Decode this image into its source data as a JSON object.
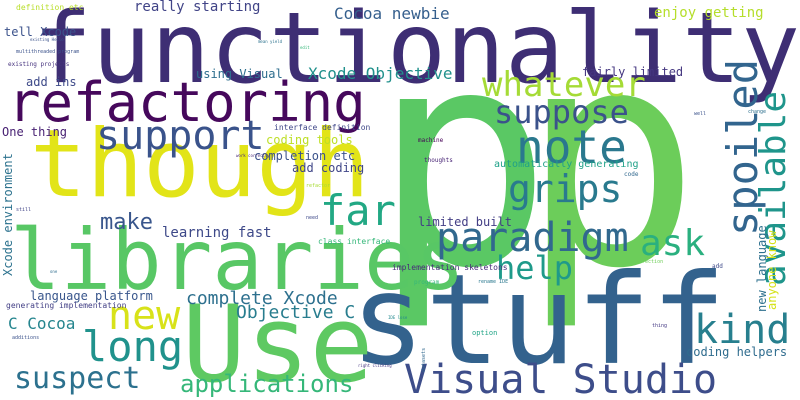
{
  "cloud": {
    "functionality": {
      "text": "functionality",
      "color": "#3e2e74"
    },
    "p": {
      "text": "p",
      "color": "#5ac864"
    },
    "p2": {
      "text": "p",
      "color": "#6ccd5a"
    },
    "refactoring": {
      "text": "refactoring",
      "color": "#46085c"
    },
    "though": {
      "text": "though",
      "color": "#e2e418"
    },
    "libraries": {
      "text": "libraries",
      "color": "#58c765"
    },
    "stuff": {
      "text": "stuff",
      "color": "#33628d"
    },
    "use": {
      "text": "Use",
      "color": "#5ec962"
    },
    "visual_studio": {
      "text": "Visual Studio",
      "color": "#3d4d8a"
    },
    "support": {
      "text": "support",
      "color": "#3a538b"
    },
    "paradigm": {
      "text": "paradigm",
      "color": "#31688e"
    },
    "whatever": {
      "text": "whatever",
      "color": "#a5db36"
    },
    "suppose": {
      "text": "suppose",
      "color": "#3b528b"
    },
    "note": {
      "text": "note",
      "color": "#2a788e"
    },
    "grips": {
      "text": "grips",
      "color": "#297a8e"
    },
    "spoiled": {
      "text": "spoiled",
      "color": "#32658e"
    },
    "available": {
      "text": "available",
      "color": "#1f958b"
    },
    "far": {
      "text": "far",
      "color": "#22a884"
    },
    "ask": {
      "text": "ask",
      "color": "#2ab07f"
    },
    "help": {
      "text": "help",
      "color": "#1f9a8a"
    },
    "kind": {
      "text": "kind",
      "color": "#277f8e"
    },
    "new": {
      "text": "new",
      "color": "#d8e219"
    },
    "long": {
      "text": "long",
      "color": "#20928c"
    },
    "suspect": {
      "text": "suspect",
      "color": "#2c718e"
    },
    "applications": {
      "text": "applications",
      "color": "#35b779"
    },
    "make": {
      "text": "make",
      "color": "#39568c"
    },
    "complete_xcode": {
      "text": "complete Xcode",
      "color": "#2d708e"
    },
    "objective_c": {
      "text": "Objective C",
      "color": "#287d8e"
    },
    "c_cocoa": {
      "text": "C Cocoa",
      "color": "#25858e"
    },
    "learning_fast": {
      "text": "learning fast",
      "color": "#3e4989"
    },
    "xcode_objective": {
      "text": "Xcode Objective",
      "color": "#21918c"
    },
    "cocoa_newbie": {
      "text": "Cocoa newbie",
      "color": "#355f8d"
    },
    "really_starting": {
      "text": "really starting",
      "color": "#414487"
    },
    "enjoy_getting": {
      "text": "enjoy getting",
      "color": "#b5de2b"
    },
    "tell_xcode": {
      "text": "tell Xcode",
      "color": "#3b528b"
    },
    "add_ins": {
      "text": "add ins",
      "color": "#3e4a89"
    },
    "using_visual": {
      "text": "using Visual",
      "color": "#2e6e8e"
    },
    "fairly_limited": {
      "text": "fairly limited",
      "color": "#453781"
    },
    "one_thing": {
      "text": "One thing",
      "color": "#482173"
    },
    "coding_tools": {
      "text": "coding tools",
      "color": "#bddf26"
    },
    "completion_etc": {
      "text": "completion etc",
      "color": "#3b528b"
    },
    "add_coding": {
      "text": "add coding",
      "color": "#404688"
    },
    "automatically_generating": {
      "text": "automatically generating",
      "color": "#1fa188"
    },
    "limited_built": {
      "text": "limited built",
      "color": "#433e85"
    },
    "new_language": {
      "text": "new language",
      "color": "#2d708e"
    },
    "anyone_know": {
      "text": "anyone know",
      "color": "#d5e21a"
    },
    "xcode_environment": {
      "text": "Xcode environment",
      "color": "#2c728e"
    },
    "language_platform": {
      "text": "language platform",
      "color": "#39568c"
    },
    "coding_helpers": {
      "text": "coding helpers",
      "color": "#2f6c8e"
    },
    "generating_implementation": {
      "text": "generating implementation",
      "color": "#423f85"
    },
    "implementation_skeletons": {
      "text": "implementation skeletons",
      "color": "#472c7a"
    },
    "definition_etc": {
      "text": "definition etc",
      "color": "#b8de29"
    },
    "interface_definition": {
      "text": "interface definition",
      "color": "#3f4788"
    },
    "multithreaded_program": {
      "text": "multithreaded program",
      "color": "#3b528b"
    },
    "existing_projects": {
      "text": "existing projects",
      "color": "#46337e"
    },
    "class_interface": {
      "text": "class interface",
      "color": "#35b779"
    },
    "machine": {
      "text": "machine",
      "color": "#440154"
    },
    "thoughts": {
      "text": "thoughts",
      "color": "#482475"
    },
    "code": {
      "text": "code",
      "color": "#31688e"
    },
    "change": {
      "text": "change",
      "color": "#2d708e"
    },
    "well": {
      "text": "well",
      "color": "#3b528b"
    },
    "refactor": {
      "text": "refactor",
      "color": "#a8db34"
    },
    "work_correctly": {
      "text": "work correctly",
      "color": "#482878"
    },
    "still": {
      "text": "still",
      "color": "#414487"
    },
    "need": {
      "text": "need",
      "color": "#3e4989"
    },
    "program": {
      "text": "program",
      "color": "#35b779"
    },
    "rename_ide": {
      "text": "rename IDE",
      "color": "#2a788e"
    },
    "direction": {
      "text": "direction",
      "color": "#6ece58"
    },
    "add": {
      "text": "add",
      "color": "#3e4a89"
    },
    "option": {
      "text": "option",
      "color": "#20a486"
    },
    "thing": {
      "text": "thing",
      "color": "#443983"
    },
    "datasets": {
      "text": "datasets",
      "color": "#31688e"
    },
    "right_clicking": {
      "text": "right clicking",
      "color": "#453581"
    },
    "additions": {
      "text": "additions",
      "color": "#3b528b"
    },
    "ide_lose": {
      "text": "IDE lose",
      "color": "#23888e"
    },
    "one": {
      "text": "one",
      "color": "#2e6d8e"
    },
    "mean_yield": {
      "text": "mean yield",
      "color": "#2c728e"
    },
    "edit": {
      "text": "edit",
      "color": "#35b779"
    },
    "existing_hello": {
      "text": "existing Hello",
      "color": "#3b528b"
    }
  }
}
